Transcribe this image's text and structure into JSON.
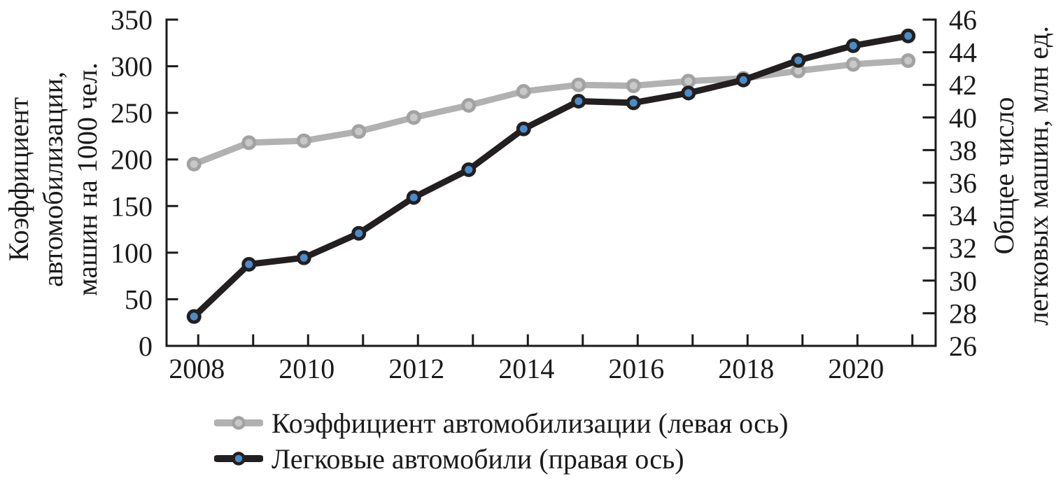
{
  "chart_data": {
    "type": "line",
    "x": [
      2008,
      2009,
      2010,
      2011,
      2012,
      2013,
      2014,
      2015,
      2016,
      2017,
      2018,
      2019,
      2020,
      2021
    ],
    "series": [
      {
        "name": "Коэффициент автомобилизации (левая ось)",
        "axis": "left",
        "color": "#b1b1b1",
        "marker_fill": "#c8c8c8",
        "marker_stroke": "#a2a2a2",
        "values": [
          195,
          218,
          220,
          230,
          245,
          258,
          273,
          280,
          279,
          284,
          287,
          295,
          302,
          306
        ]
      },
      {
        "name": "Легковые автомобили (правая ось)",
        "axis": "right",
        "color": "#231f20",
        "marker_fill": "#4a8cca",
        "marker_stroke": "#231f20",
        "values": [
          27.8,
          31.0,
          31.4,
          32.9,
          35.1,
          36.8,
          39.3,
          41.0,
          40.9,
          41.5,
          42.3,
          43.5,
          44.4,
          45.0
        ]
      }
    ],
    "left_axis": {
      "title_lines": [
        "Коэффициент",
        "автомобилизации,",
        "машин на 1000 чел."
      ],
      "min": 0,
      "max": 350,
      "step": 50,
      "tick_labels": [
        "0",
        "50",
        "100",
        "150",
        "200",
        "250",
        "300",
        "350"
      ]
    },
    "right_axis": {
      "title_lines": [
        "Общее число",
        "легковых машин, млн ед."
      ],
      "min": 26,
      "max": 46,
      "step": 2,
      "tick_labels": [
        "26",
        "28",
        "30",
        "32",
        "34",
        "36",
        "38",
        "40",
        "42",
        "44",
        "46"
      ]
    },
    "x_axis": {
      "visible_tick_labels": [
        "2008",
        "2010",
        "2012",
        "2014",
        "2016",
        "2018",
        "2020"
      ]
    },
    "style": {
      "axis_color": "#1a1a1a",
      "text_color": "#1a1a1a",
      "background": "#ffffff",
      "line_width": 9,
      "legend_position": "bottom-left"
    }
  }
}
